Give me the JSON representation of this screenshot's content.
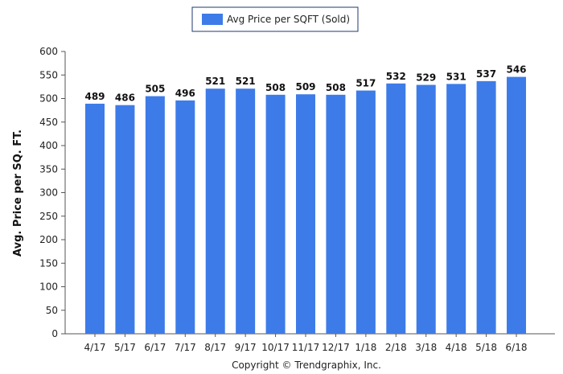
{
  "colors": {
    "bar": "#3d7be8",
    "axis": "#555555",
    "legend_border": "#1f3a6e"
  },
  "copyright": "Copyright © Trendgraphix, Inc.",
  "chart_data": {
    "type": "bar",
    "categories": [
      "4/17",
      "5/17",
      "6/17",
      "7/17",
      "8/17",
      "9/17",
      "10/17",
      "11/17",
      "12/17",
      "1/18",
      "2/18",
      "3/18",
      "4/18",
      "5/18",
      "6/18"
    ],
    "series": [
      {
        "name": "Avg Price per SQFT (Sold)",
        "values": [
          489,
          486,
          505,
          496,
          521,
          521,
          508,
          509,
          508,
          517,
          532,
          529,
          531,
          537,
          546
        ]
      }
    ],
    "xlabel": "",
    "ylabel": "Avg. Price per SQ. FT.",
    "ylim": [
      0,
      600
    ],
    "yticks": [
      0,
      50,
      100,
      150,
      200,
      250,
      300,
      350,
      400,
      450,
      500,
      550,
      600
    ],
    "grid": false,
    "legend": "top-center",
    "data_labels": true
  }
}
